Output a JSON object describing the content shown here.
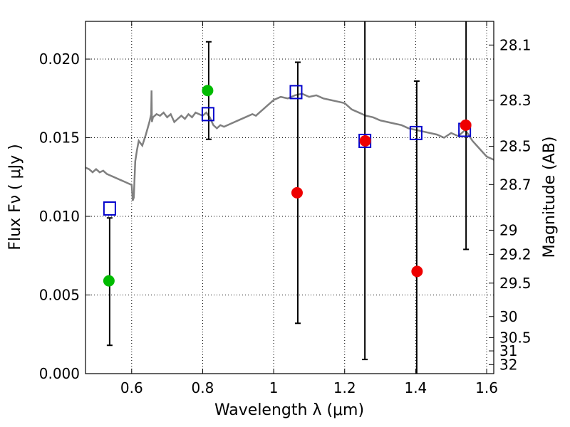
{
  "chart_data": {
    "type": "scatter",
    "xlabel": "Wavelength  λ (μm)",
    "ylabel": "Flux  Fν  ( μJy )",
    "y2label": "Magnitude (AB)",
    "xlim": [
      0.47,
      1.62
    ],
    "ylim": [
      0.0,
      0.0224
    ],
    "grid": true,
    "x_ticks": [
      0.6,
      0.8,
      1.0,
      1.2,
      1.4,
      1.6
    ],
    "x_tick_labels": [
      "0.6",
      "0.8",
      "1",
      "1.2",
      "1.4",
      "1.6"
    ],
    "y_ticks": [
      0.0,
      0.005,
      0.01,
      0.015,
      0.02
    ],
    "y_tick_labels": [
      "0.000",
      "0.005",
      "0.010",
      "0.015",
      "0.020"
    ],
    "mag_ticks": [
      28.1,
      28.3,
      28.5,
      28.7,
      29,
      29.2,
      29.5,
      30,
      30.5,
      31,
      32
    ],
    "mag_tick_labels": [
      "28.1",
      "28.3",
      "28.5",
      "28.7",
      "29",
      "29.2",
      "29.5",
      "30",
      "30.5",
      "31",
      "32"
    ],
    "colors": {
      "model": "#808080",
      "green": "#00bb00",
      "red": "#ee0000",
      "blue_square": "#0000cc",
      "errorbar": "#000000"
    },
    "series": [
      {
        "name": "model spectrum",
        "kind": "line",
        "x": [
          0.47,
          0.48,
          0.49,
          0.5,
          0.51,
          0.52,
          0.53,
          0.54,
          0.55,
          0.56,
          0.57,
          0.58,
          0.59,
          0.6,
          0.603,
          0.606,
          0.61,
          0.615,
          0.62,
          0.63,
          0.64,
          0.65,
          0.655,
          0.656,
          0.657,
          0.66,
          0.67,
          0.68,
          0.69,
          0.7,
          0.71,
          0.72,
          0.73,
          0.74,
          0.75,
          0.76,
          0.77,
          0.78,
          0.79,
          0.8,
          0.81,
          0.82,
          0.83,
          0.84,
          0.85,
          0.86,
          0.88,
          0.9,
          0.92,
          0.94,
          0.95,
          0.96,
          0.97,
          0.98,
          0.99,
          1.0,
          1.02,
          1.04,
          1.06,
          1.08,
          1.1,
          1.12,
          1.14,
          1.16,
          1.18,
          1.2,
          1.22,
          1.24,
          1.26,
          1.28,
          1.3,
          1.32,
          1.34,
          1.36,
          1.38,
          1.4,
          1.42,
          1.44,
          1.46,
          1.48,
          1.5,
          1.52,
          1.54,
          1.56,
          1.58,
          1.6,
          1.62
        ],
        "y": [
          0.0131,
          0.013,
          0.0128,
          0.013,
          0.0128,
          0.0129,
          0.0127,
          0.0126,
          0.0125,
          0.0124,
          0.0123,
          0.0122,
          0.0121,
          0.012,
          0.011,
          0.0112,
          0.0135,
          0.0142,
          0.0148,
          0.0145,
          0.0152,
          0.016,
          0.0165,
          0.018,
          0.016,
          0.0163,
          0.0165,
          0.0164,
          0.0166,
          0.0163,
          0.0165,
          0.016,
          0.0162,
          0.0164,
          0.0162,
          0.0165,
          0.0163,
          0.0166,
          0.0165,
          0.0164,
          0.0166,
          0.0163,
          0.0158,
          0.0156,
          0.0158,
          0.0157,
          0.0159,
          0.0161,
          0.0163,
          0.0165,
          0.0164,
          0.0166,
          0.0168,
          0.017,
          0.0172,
          0.0174,
          0.0176,
          0.0175,
          0.0177,
          0.0178,
          0.0176,
          0.0177,
          0.0175,
          0.0174,
          0.0173,
          0.0172,
          0.0168,
          0.0166,
          0.0164,
          0.0163,
          0.0161,
          0.016,
          0.0159,
          0.0158,
          0.0156,
          0.0155,
          0.0154,
          0.0153,
          0.0152,
          0.015,
          0.0153,
          0.0151,
          0.0155,
          0.0148,
          0.0143,
          0.0138,
          0.0136
        ]
      },
      {
        "name": "green points",
        "kind": "points",
        "marker": "circle",
        "x": [
          0.536,
          0.814
        ],
        "y": [
          0.0059,
          0.018
        ]
      },
      {
        "name": "red points",
        "kind": "points",
        "marker": "circle",
        "x": [
          1.066,
          1.258,
          1.404,
          1.541
        ],
        "y": [
          0.0115,
          0.0148,
          0.0065,
          0.0158
        ]
      },
      {
        "name": "blue squares",
        "kind": "points",
        "marker": "open-square",
        "x": [
          0.538,
          0.815,
          1.063,
          1.257,
          1.401,
          1.538
        ],
        "y": [
          0.0105,
          0.0165,
          0.0179,
          0.0148,
          0.0153,
          0.0155
        ]
      },
      {
        "name": "error bars",
        "kind": "errorbar",
        "x": [
          0.538,
          0.817,
          1.068,
          1.257,
          1.403,
          1.542
        ],
        "ylow": [
          0.0018,
          0.0149,
          0.0032,
          0.0009,
          0.0,
          0.0079
        ],
        "yhigh": [
          0.0099,
          0.0211,
          0.0198,
          0.0224,
          0.0186,
          0.0224
        ]
      }
    ]
  }
}
